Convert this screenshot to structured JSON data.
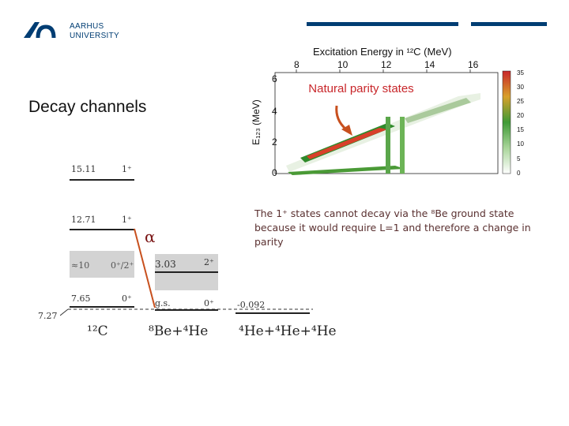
{
  "header": {
    "university_line1": "AARHUS",
    "university_line2": "UNIVERSITY"
  },
  "slide": {
    "title": "Decay channels"
  },
  "plot": {
    "top_axis_label": "Excitation Energy in ¹²C (MeV)",
    "top_ticks": [
      "8",
      "10",
      "12",
      "14",
      "16"
    ],
    "y_axis_label": "E₁₂₃ (MeV)",
    "y_ticks": [
      "6",
      "4",
      "2",
      "0"
    ],
    "colorbar_ticks": [
      "35",
      "30",
      "25",
      "20",
      "15",
      "10",
      "5",
      "0"
    ],
    "banner": "Natural parity states"
  },
  "levels": {
    "c12": [
      {
        "energy": "15.11",
        "spin": "1⁺"
      },
      {
        "energy": "12.71",
        "spin": "1⁺"
      },
      {
        "energy": "≈10",
        "spin": "0⁺/2⁺"
      },
      {
        "energy": "7.65",
        "spin": "0⁺"
      }
    ],
    "threshold": "7.27",
    "be8": [
      {
        "energy": "3.03",
        "spin": "2⁺"
      },
      {
        "energy": "g.s.",
        "spin": "0⁺"
      }
    ],
    "three_alpha": "-0.092",
    "alpha_symbol": "α"
  },
  "labels": {
    "c12": "¹²C",
    "be8_he4": "⁸Be+⁴He",
    "three_he4": "⁴He+⁴He+⁴He"
  },
  "note": "The 1⁺ states cannot decay via the ⁸Be ground state because it would require L=1 and therefore a change in parity",
  "colors": {
    "brand": "#003d73",
    "arrow": "#c8501e",
    "banner_text": "#c8262a"
  }
}
